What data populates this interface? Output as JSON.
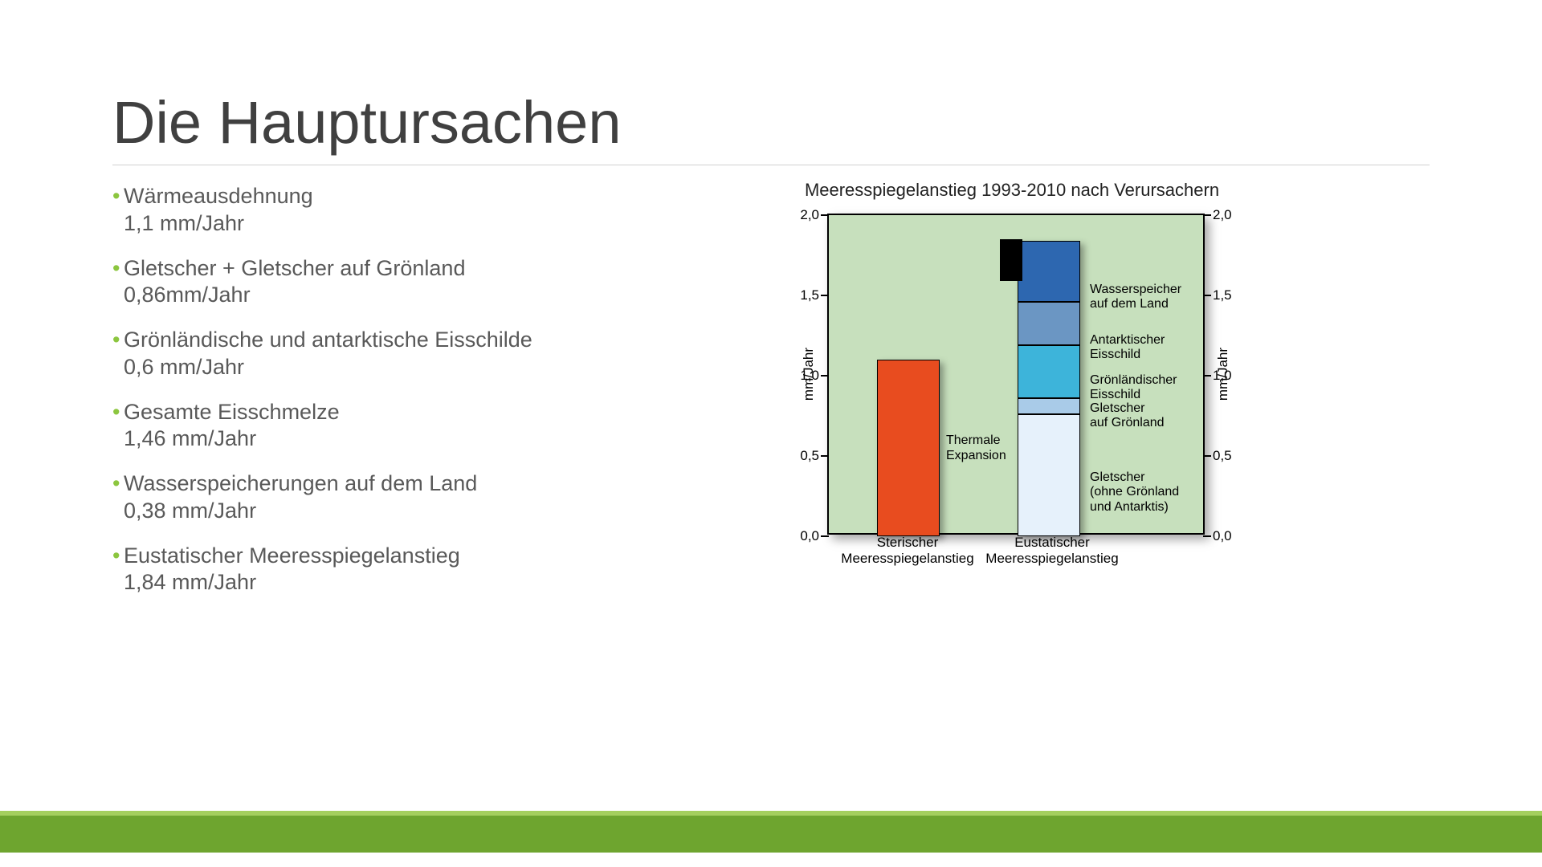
{
  "title": "Die Hauptursachen",
  "bullets": [
    {
      "main": "Wärmeausdehnung",
      "sub": "1,1 mm/Jahr"
    },
    {
      "main": "Gletscher + Gletscher auf Grönland",
      "sub": "0,86mm/Jahr"
    },
    {
      "main": "Grönländische und antarktische Eisschilde",
      "sub": "0,6 mm/Jahr"
    },
    {
      "main": "Gesamte Eisschmelze",
      "sub": "1,46 mm/Jahr"
    },
    {
      "main": "Wasserspeicherungen auf dem Land",
      "sub": "0,38 mm/Jahr"
    },
    {
      "main": "Eustatischer Meeresspiegelanstieg",
      "sub": "1,84 mm/Jahr"
    }
  ],
  "chart": {
    "title": "Meeresspiegelanstieg 1993-2010 nach Verursachern",
    "y_axis_label": "mm/Jahr",
    "ylim": [
      0.0,
      2.0
    ],
    "yticks": [
      {
        "v": 0.0,
        "label": "0,0"
      },
      {
        "v": 0.5,
        "label": "0,5"
      },
      {
        "v": 1.0,
        "label": "1,0"
      },
      {
        "v": 1.5,
        "label": "1,5"
      },
      {
        "v": 2.0,
        "label": "2,0"
      }
    ],
    "plot_bg": "#c7e0bd",
    "categories": [
      {
        "key": "steric",
        "label_l1": "Sterischer",
        "label_l2": "Meeresspiegelanstieg"
      },
      {
        "key": "eustatic",
        "label_l1": "Eustatischer",
        "label_l2": "Meeresspiegelanstieg"
      }
    ],
    "steric_bar": {
      "value": 1.1,
      "color": "#e84c1f",
      "label_l1": "Thermale",
      "label_l2": "Expansion"
    },
    "eustatic_segments": [
      {
        "key": "gletscher",
        "value": 0.76,
        "color": "#e6f1fb",
        "label_l1": "Gletscher",
        "label_l2": "(ohne Grönland",
        "label_l3": "und Antarktis)"
      },
      {
        "key": "gletscher_groenland",
        "value": 0.1,
        "color": "#a9cbe8",
        "label_l1": "Gletscher",
        "label_l2": "auf Grönland",
        "label_l3": ""
      },
      {
        "key": "groenland_eisschild",
        "value": 0.33,
        "color": "#3db4da",
        "label_l1": "Grönländischer",
        "label_l2": "Eisschild",
        "label_l3": ""
      },
      {
        "key": "antarktis_eisschild",
        "value": 0.27,
        "color": "#6b96c3",
        "label_l1": "Antarktischer",
        "label_l2": "Eisschild",
        "label_l3": ""
      },
      {
        "key": "wasserspeicher",
        "value": 0.38,
        "color": "#2d67b0",
        "label_l1": "Wasserspeicher",
        "label_l2": "auf dem Land",
        "label_l3": ""
      }
    ],
    "eustatic_negative": {
      "value": 0.26,
      "color": "#000000"
    }
  },
  "colors": {
    "bullet_accent": "#8cc63f",
    "footer_main": "#6ea52f",
    "footer_top": "#a4cf5e"
  }
}
